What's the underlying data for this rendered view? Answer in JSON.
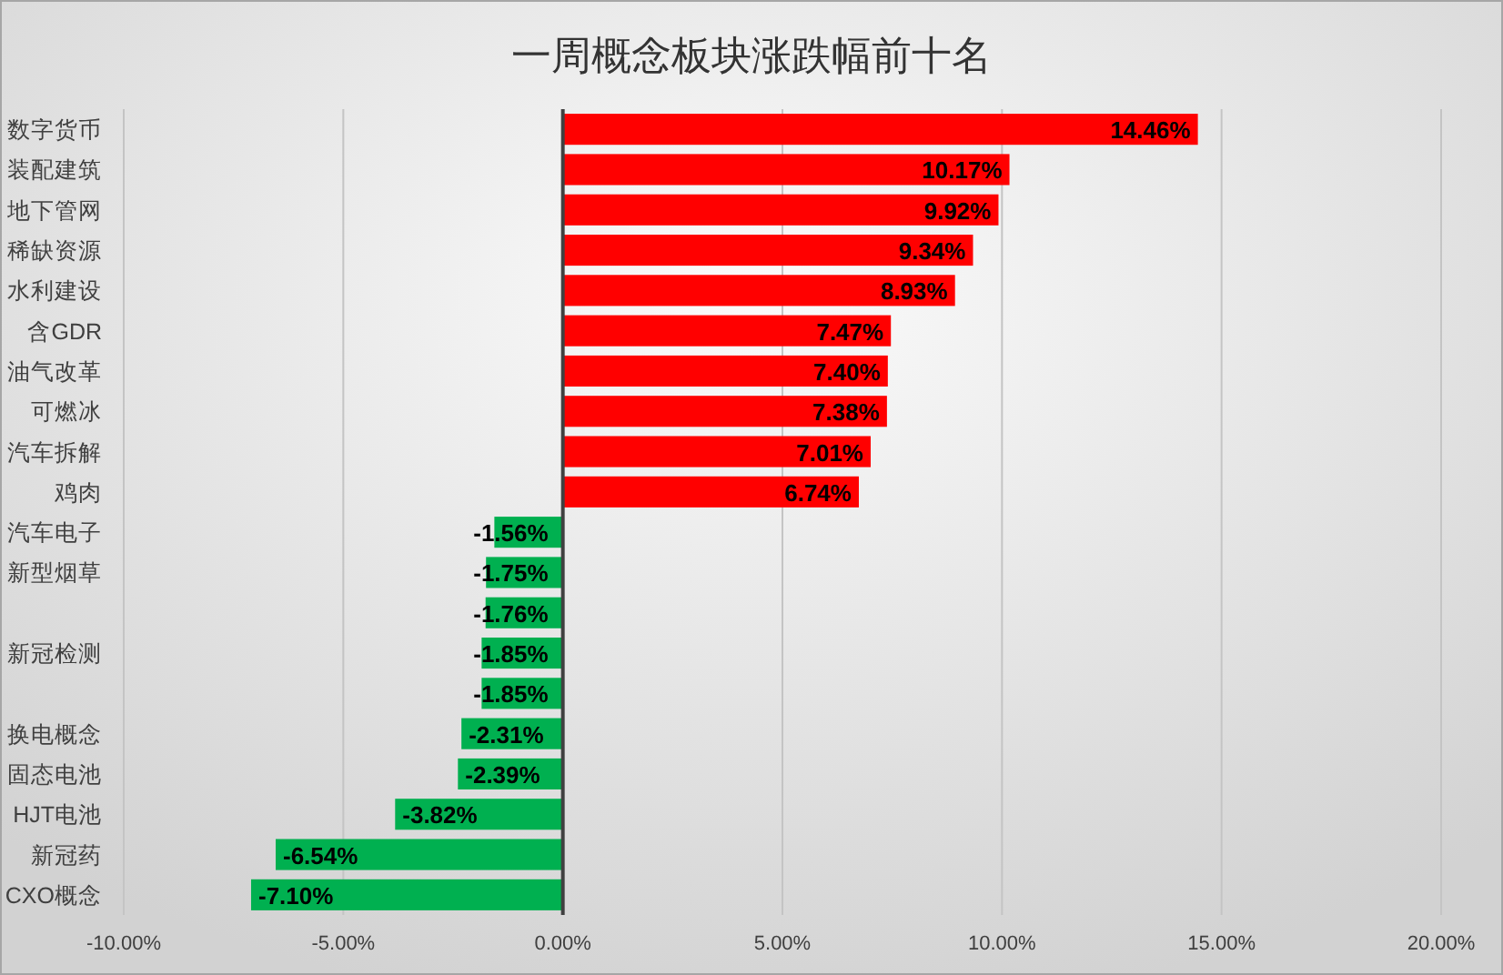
{
  "chart_data": {
    "type": "bar",
    "orientation": "horizontal",
    "title": "一周概念板块涨跌幅前十名",
    "categories": [
      "数字货币",
      "装配建筑",
      "地下管网",
      "稀缺资源",
      "水利建设",
      "含GDR",
      "油气改革",
      "可燃冰",
      "汽车拆解",
      "鸡肉",
      "汽车电子",
      "新型烟草",
      null,
      "新冠检测",
      null,
      "换电概念",
      "固态电池",
      "HJT电池",
      "新冠药",
      "CXO概念"
    ],
    "values": [
      14.46,
      10.17,
      9.92,
      9.34,
      8.93,
      7.47,
      7.4,
      7.38,
      7.01,
      6.74,
      -1.56,
      -1.75,
      -1.76,
      -1.85,
      -1.85,
      -2.31,
      -2.39,
      -3.82,
      -6.54,
      -7.1
    ],
    "value_labels": [
      "14.46%",
      "10.17%",
      "9.92%",
      "9.34%",
      "8.93%",
      "7.47%",
      "7.40%",
      "7.38%",
      "7.01%",
      "6.74%",
      "-1.56%",
      "-1.75%",
      "-1.76%",
      "-1.85%",
      "-1.85%",
      "-2.31%",
      "-2.39%",
      "-3.82%",
      "-6.54%",
      "-7.10%"
    ],
    "colors": [
      "#ff0000",
      "#ff0000",
      "#ff0000",
      "#ff0000",
      "#ff0000",
      "#ff0000",
      "#ff0000",
      "#ff0000",
      "#ff0000",
      "#ff0000",
      "#00b050",
      "#00b050",
      "#00b050",
      "#00b050",
      "#00b050",
      "#00b050",
      "#00b050",
      "#00b050",
      "#00b050",
      "#00b050"
    ],
    "xlim": [
      -10,
      20
    ],
    "xticks": [
      {
        "value": -10,
        "label": "-10.00%"
      },
      {
        "value": -5,
        "label": "-5.00%"
      },
      {
        "value": 0,
        "label": "0.00%"
      },
      {
        "value": 5,
        "label": "5.00%"
      },
      {
        "value": 10,
        "label": "10.00%"
      },
      {
        "value": 15,
        "label": "15.00%"
      },
      {
        "value": 20,
        "label": "20.00%"
      }
    ],
    "grid": "x"
  }
}
